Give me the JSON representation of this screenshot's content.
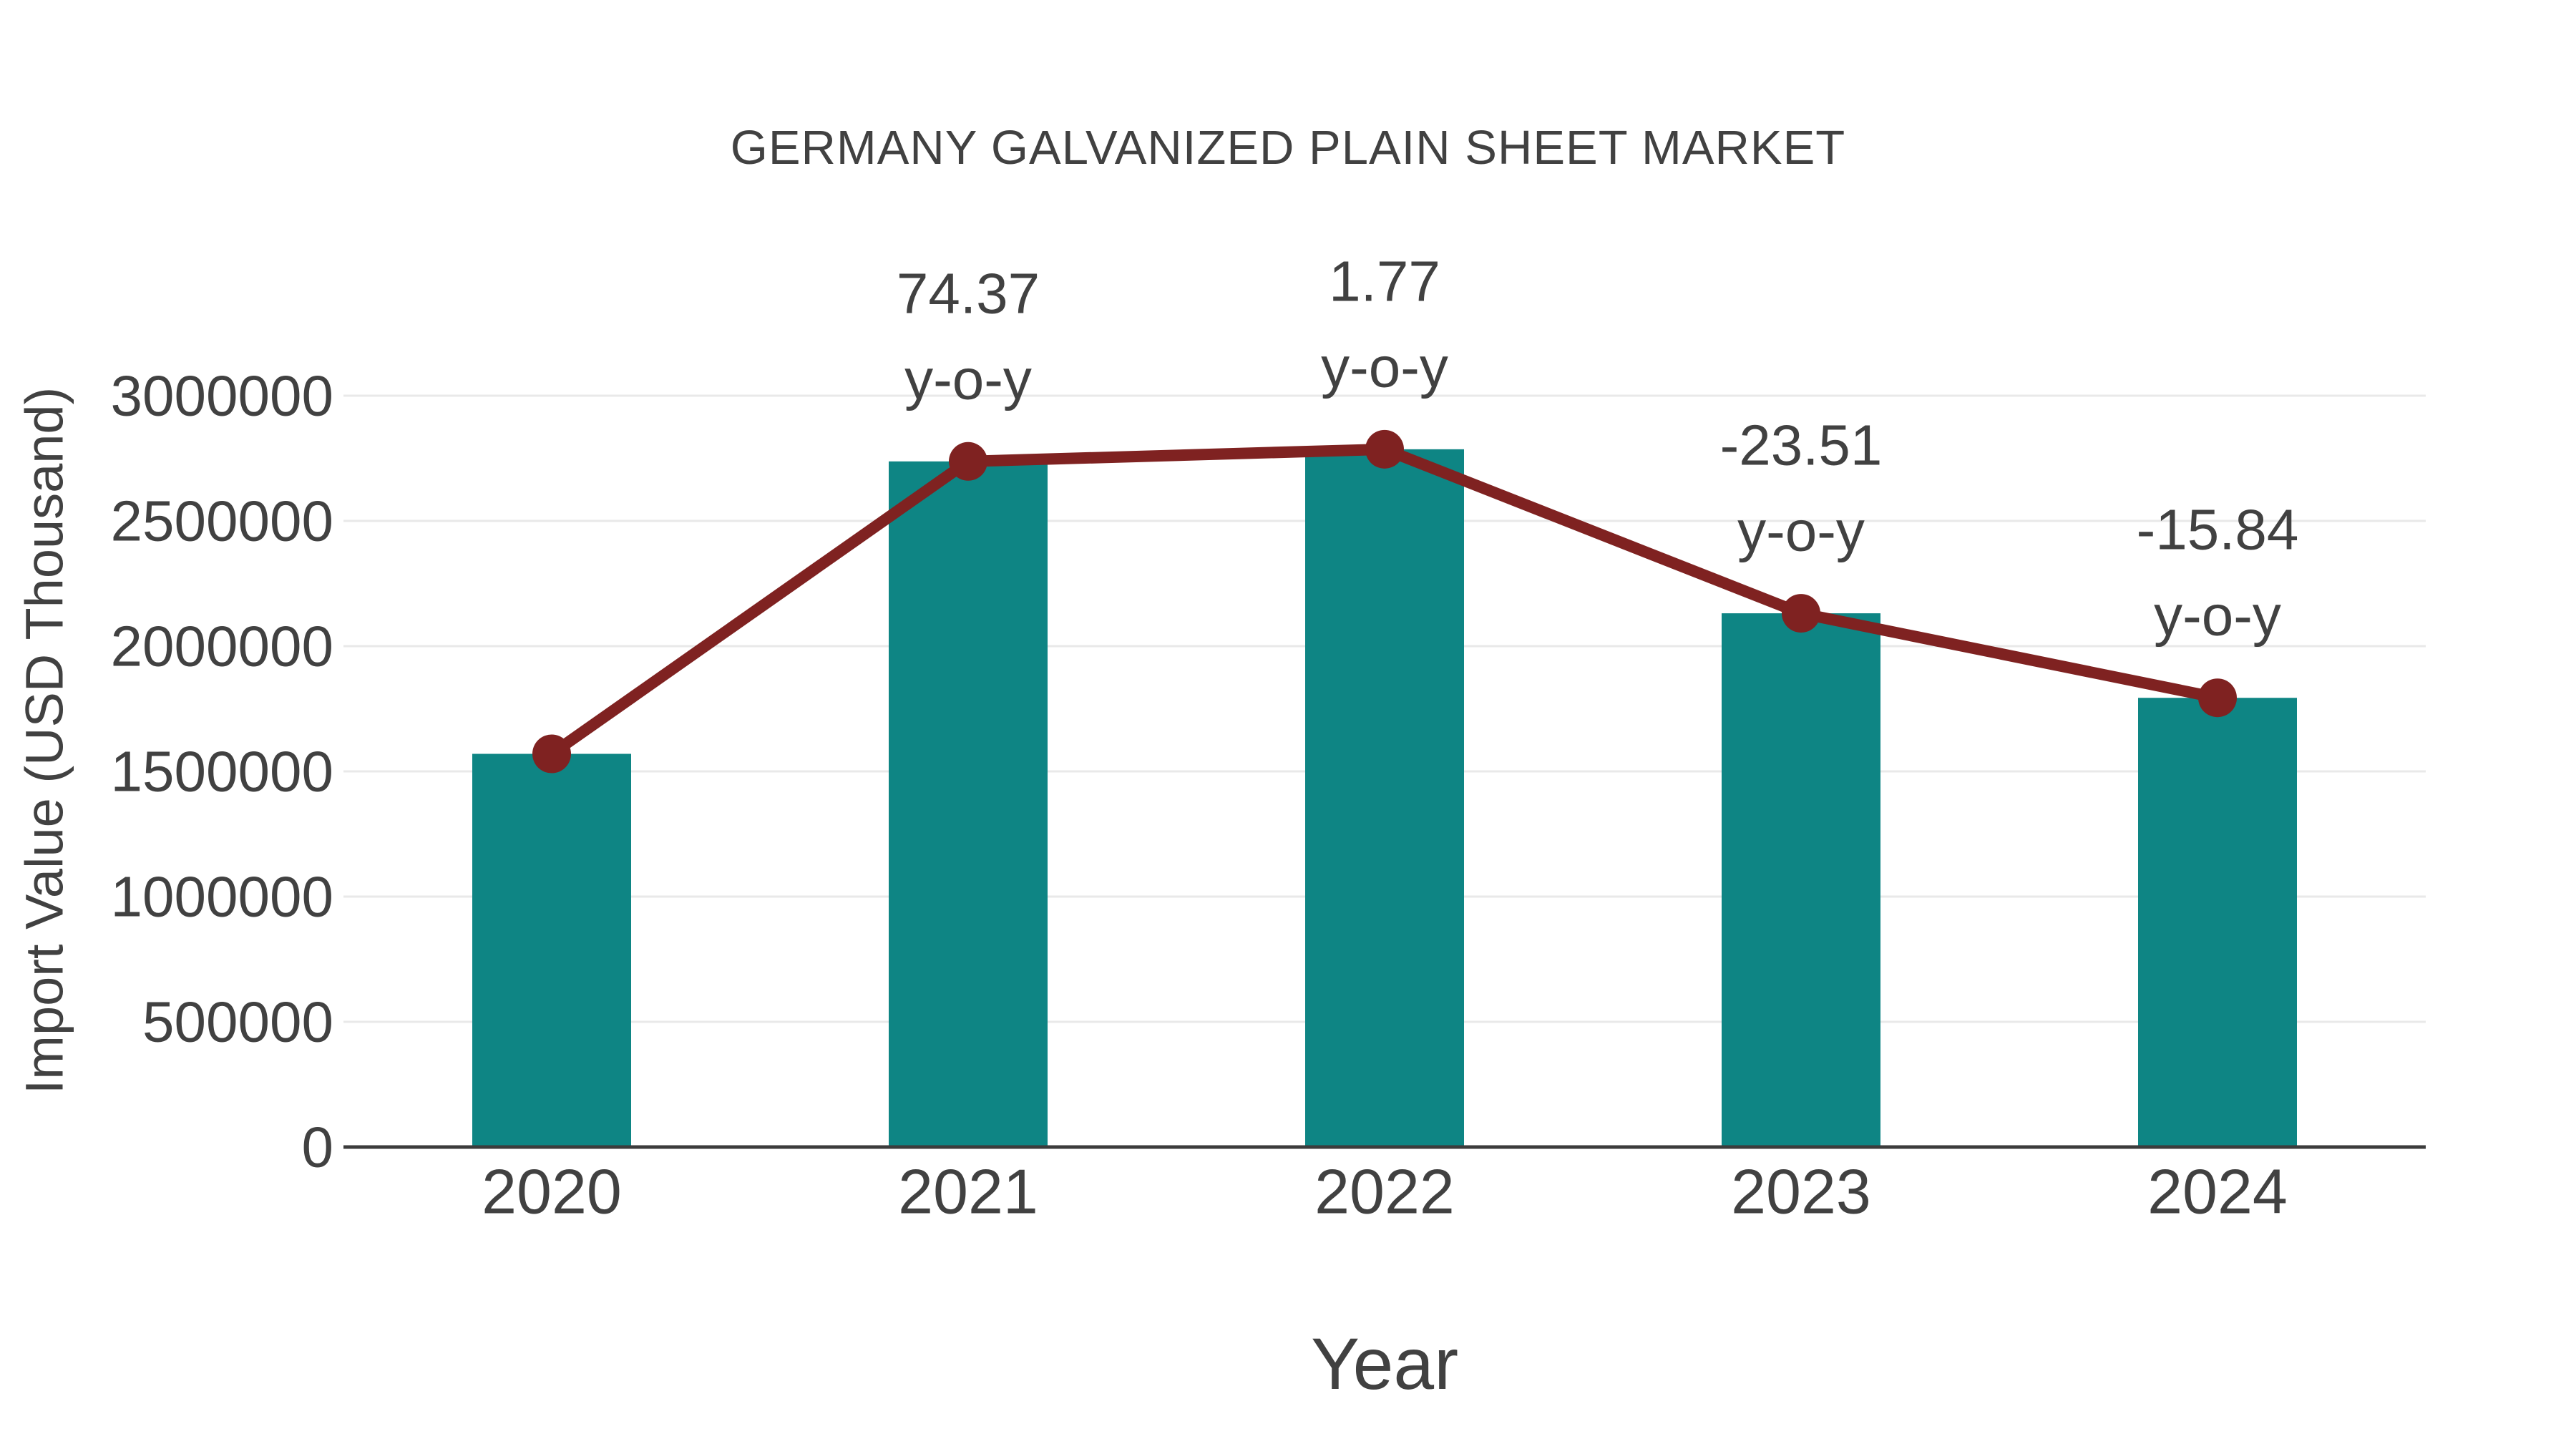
{
  "title": "GERMANY GALVANIZED PLAIN SHEET MARKET",
  "x_axis": {
    "label": "Year"
  },
  "y_axis": {
    "label": "Import Value (USD Thousand)"
  },
  "colors": {
    "bar": "#0e8584",
    "line": "#7f2221",
    "marker": "#7f2221",
    "grid": "#e9e9e9",
    "axis": "#3c3c3c",
    "text": "#414141",
    "background": "#ffffff"
  },
  "chart_data": {
    "type": "bar",
    "title": "GERMANY GALVANIZED PLAIN SHEET MARKET",
    "xlabel": "Year",
    "ylabel": "Import Value (USD Thousand)",
    "categories": [
      "2020",
      "2021",
      "2022",
      "2023",
      "2024"
    ],
    "series": [
      {
        "name": "Import Value (USD Thousand)",
        "type": "bar",
        "values": [
          1570000,
          2737700,
          2786100,
          2131200,
          1793600
        ]
      },
      {
        "name": "y-o-y",
        "type": "line",
        "values": [
          null,
          74.37,
          1.77,
          -23.51,
          -15.84
        ]
      }
    ],
    "annotations": [
      {
        "category": "2021",
        "value_line": "74.37",
        "unit_line": "y-o-y"
      },
      {
        "category": "2022",
        "value_line": "1.77",
        "unit_line": "y-o-y"
      },
      {
        "category": "2023",
        "value_line": "-23.51",
        "unit_line": "y-o-y"
      },
      {
        "category": "2024",
        "value_line": "-15.84",
        "unit_line": "y-o-y"
      }
    ],
    "ylim": [
      0,
      3000000
    ],
    "yticks": [
      0,
      500000,
      1000000,
      1500000,
      2000000,
      2500000,
      3000000
    ],
    "ytick_labels": [
      "0",
      "500000",
      "1000000",
      "1500000",
      "2000000",
      "2500000",
      "3000000"
    ],
    "grid": "horizontal",
    "legend": "none"
  }
}
